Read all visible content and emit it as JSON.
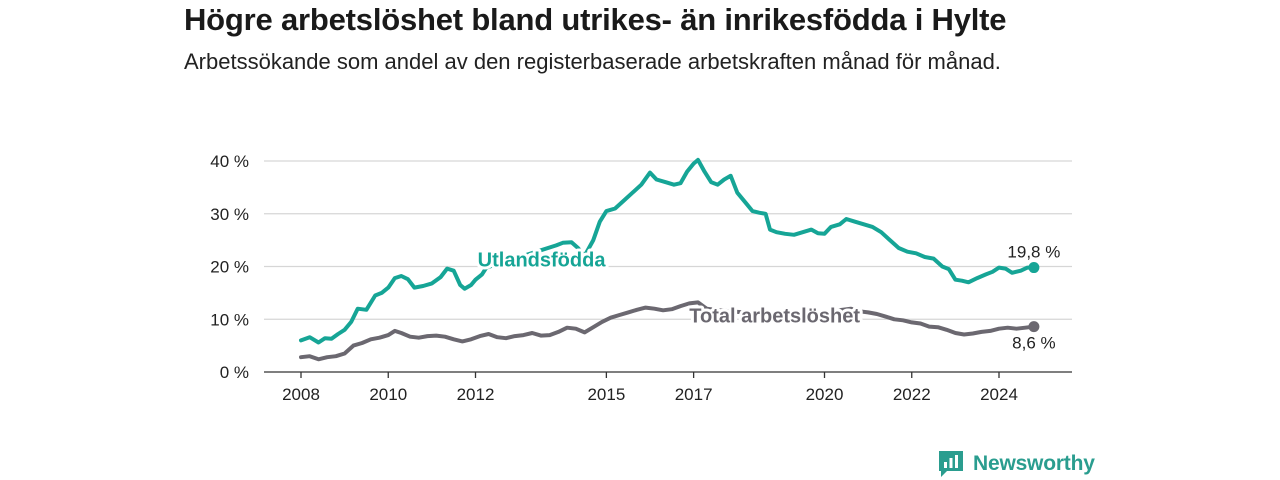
{
  "title": "Högre arbetslöshet bland utrikes- än inrikesfödda i Hylte",
  "subtitle": "Arbetssökande som andel av den registerbaserade arbetskraften månad för månad.",
  "logo": {
    "text": "Newsworthy",
    "icon": "newsworthy-chart-icon"
  },
  "colors": {
    "foreign": "#16a596",
    "total": "#6b6870",
    "grid": "#d6d6d6",
    "axis": "#333333",
    "text": "#222222"
  },
  "chart_data": {
    "type": "line",
    "title": "",
    "xlabel": "",
    "ylabel": "",
    "ylim": [
      0,
      40
    ],
    "xlim": [
      2008.0,
      2025.25
    ],
    "grid": "horizontal",
    "legend": "inline labels",
    "y_ticks": [
      {
        "value": 0,
        "label": "0 %"
      },
      {
        "value": 10,
        "label": "10 %"
      },
      {
        "value": 20,
        "label": "20 %"
      },
      {
        "value": 30,
        "label": "30 %"
      },
      {
        "value": 40,
        "label": "40 %"
      }
    ],
    "x_ticks": [
      {
        "value": 2008,
        "label": "2008"
      },
      {
        "value": 2010,
        "label": "2010"
      },
      {
        "value": 2012,
        "label": "2012"
      },
      {
        "value": 2015,
        "label": "2015"
      },
      {
        "value": 2017,
        "label": "2017"
      },
      {
        "value": 2020,
        "label": "2020"
      },
      {
        "value": 2022,
        "label": "2022"
      },
      {
        "value": 2024,
        "label": "2024"
      }
    ],
    "series": [
      {
        "name": "Utlandsfödda",
        "color": "#16a596",
        "end_label": "19,8 %",
        "points": [
          [
            2008.0,
            6.0
          ],
          [
            2008.2,
            6.6
          ],
          [
            2008.4,
            5.6
          ],
          [
            2008.55,
            6.4
          ],
          [
            2008.7,
            6.3
          ],
          [
            2008.85,
            7.2
          ],
          [
            2009.0,
            8.0
          ],
          [
            2009.15,
            9.5
          ],
          [
            2009.3,
            12.0
          ],
          [
            2009.5,
            11.8
          ],
          [
            2009.7,
            14.5
          ],
          [
            2009.85,
            15.0
          ],
          [
            2010.0,
            16.0
          ],
          [
            2010.15,
            17.8
          ],
          [
            2010.3,
            18.2
          ],
          [
            2010.45,
            17.6
          ],
          [
            2010.6,
            16.0
          ],
          [
            2010.8,
            16.3
          ],
          [
            2011.0,
            16.8
          ],
          [
            2011.2,
            18.0
          ],
          [
            2011.35,
            19.6
          ],
          [
            2011.5,
            19.2
          ],
          [
            2011.65,
            16.5
          ],
          [
            2011.75,
            15.8
          ],
          [
            2011.9,
            16.5
          ],
          [
            2012.0,
            17.5
          ],
          [
            2012.15,
            18.5
          ],
          [
            2012.25,
            19.8
          ],
          [
            2013.85,
            24.0
          ],
          [
            2014.0,
            24.5
          ],
          [
            2014.2,
            24.6
          ],
          [
            2014.35,
            23.5
          ],
          [
            2014.5,
            22.0
          ],
          [
            2014.7,
            25.0
          ],
          [
            2014.85,
            28.5
          ],
          [
            2015.0,
            30.5
          ],
          [
            2015.2,
            31.0
          ],
          [
            2015.4,
            32.5
          ],
          [
            2015.6,
            34.0
          ],
          [
            2015.8,
            35.5
          ],
          [
            2016.0,
            37.8
          ],
          [
            2016.15,
            36.5
          ],
          [
            2016.35,
            36.0
          ],
          [
            2016.55,
            35.5
          ],
          [
            2016.7,
            35.8
          ],
          [
            2016.85,
            38.0
          ],
          [
            2017.0,
            39.5
          ],
          [
            2017.1,
            40.2
          ],
          [
            2017.25,
            38.0
          ],
          [
            2017.4,
            36.0
          ],
          [
            2017.55,
            35.5
          ],
          [
            2017.7,
            36.5
          ],
          [
            2017.85,
            37.2
          ],
          [
            2018.0,
            34.0
          ],
          [
            2018.2,
            32.0
          ],
          [
            2018.35,
            30.5
          ],
          [
            2018.5,
            30.2
          ],
          [
            2018.65,
            30.0
          ],
          [
            2018.75,
            27.0
          ],
          [
            2018.9,
            26.5
          ],
          [
            2019.1,
            26.2
          ],
          [
            2019.3,
            26.0
          ],
          [
            2019.5,
            26.5
          ],
          [
            2019.7,
            27.0
          ],
          [
            2019.85,
            26.3
          ],
          [
            2020.0,
            26.2
          ],
          [
            2020.15,
            27.5
          ],
          [
            2020.35,
            28.0
          ],
          [
            2020.5,
            29.0
          ],
          [
            2020.7,
            28.5
          ],
          [
            2020.9,
            28.0
          ],
          [
            2021.1,
            27.5
          ],
          [
            2021.3,
            26.5
          ],
          [
            2021.5,
            25.0
          ],
          [
            2021.7,
            23.5
          ],
          [
            2021.9,
            22.8
          ],
          [
            2022.1,
            22.5
          ],
          [
            2022.3,
            21.8
          ],
          [
            2022.5,
            21.5
          ],
          [
            2022.7,
            20.0
          ],
          [
            2022.85,
            19.5
          ],
          [
            2023.0,
            17.5
          ],
          [
            2023.15,
            17.3
          ],
          [
            2023.3,
            17.0
          ],
          [
            2023.5,
            17.8
          ],
          [
            2023.7,
            18.5
          ],
          [
            2023.85,
            19.0
          ],
          [
            2024.0,
            19.8
          ],
          [
            2024.15,
            19.6
          ],
          [
            2024.3,
            18.8
          ],
          [
            2024.5,
            19.2
          ],
          [
            2024.65,
            19.8
          ],
          [
            2024.8,
            19.8
          ]
        ]
      },
      {
        "name": "Total arbetslöshet",
        "color": "#6b6870",
        "end_label": "8,6 %",
        "points": [
          [
            2008.0,
            2.8
          ],
          [
            2008.2,
            3.0
          ],
          [
            2008.4,
            2.4
          ],
          [
            2008.6,
            2.8
          ],
          [
            2008.8,
            3.0
          ],
          [
            2009.0,
            3.5
          ],
          [
            2009.2,
            5.0
          ],
          [
            2009.4,
            5.5
          ],
          [
            2009.6,
            6.2
          ],
          [
            2009.8,
            6.5
          ],
          [
            2010.0,
            7.0
          ],
          [
            2010.15,
            7.8
          ],
          [
            2010.3,
            7.4
          ],
          [
            2010.5,
            6.7
          ],
          [
            2010.7,
            6.5
          ],
          [
            2010.9,
            6.8
          ],
          [
            2011.1,
            6.9
          ],
          [
            2011.3,
            6.7
          ],
          [
            2011.5,
            6.2
          ],
          [
            2011.7,
            5.8
          ],
          [
            2011.9,
            6.2
          ],
          [
            2012.1,
            6.8
          ],
          [
            2012.3,
            7.2
          ],
          [
            2012.5,
            6.6
          ],
          [
            2012.7,
            6.4
          ],
          [
            2012.9,
            6.8
          ],
          [
            2013.1,
            7.0
          ],
          [
            2013.3,
            7.4
          ],
          [
            2013.5,
            6.9
          ],
          [
            2013.7,
            7.0
          ],
          [
            2013.9,
            7.6
          ],
          [
            2014.1,
            8.4
          ],
          [
            2014.3,
            8.2
          ],
          [
            2014.5,
            7.5
          ],
          [
            2014.7,
            8.5
          ],
          [
            2014.9,
            9.5
          ],
          [
            2015.1,
            10.3
          ],
          [
            2015.3,
            10.8
          ],
          [
            2015.5,
            11.3
          ],
          [
            2015.7,
            11.8
          ],
          [
            2015.9,
            12.2
          ],
          [
            2016.1,
            12.0
          ],
          [
            2016.3,
            11.7
          ],
          [
            2016.5,
            11.9
          ],
          [
            2016.7,
            12.5
          ],
          [
            2016.9,
            13.0
          ],
          [
            2017.1,
            13.2
          ],
          [
            2017.3,
            12.0
          ],
          [
            2017.5,
            11.8
          ],
          [
            2017.7,
            11.6
          ],
          [
            2018.0,
            11.4
          ],
          [
            2018.3,
            11.2
          ],
          [
            2018.6,
            11.0
          ],
          [
            2018.9,
            10.8
          ],
          [
            2019.2,
            11.0
          ],
          [
            2019.5,
            11.1
          ],
          [
            2019.8,
            11.0
          ],
          [
            2020.1,
            11.2
          ],
          [
            2020.4,
            11.8
          ],
          [
            2020.6,
            12.0
          ],
          [
            2020.8,
            11.5
          ],
          [
            2021.0,
            11.3
          ],
          [
            2021.2,
            11.0
          ],
          [
            2021.4,
            10.5
          ],
          [
            2021.6,
            10.0
          ],
          [
            2021.8,
            9.8
          ],
          [
            2022.0,
            9.4
          ],
          [
            2022.2,
            9.2
          ],
          [
            2022.4,
            8.6
          ],
          [
            2022.6,
            8.5
          ],
          [
            2022.8,
            8.0
          ],
          [
            2023.0,
            7.4
          ],
          [
            2023.2,
            7.1
          ],
          [
            2023.4,
            7.3
          ],
          [
            2023.6,
            7.6
          ],
          [
            2023.8,
            7.8
          ],
          [
            2024.0,
            8.2
          ],
          [
            2024.2,
            8.4
          ],
          [
            2024.4,
            8.2
          ],
          [
            2024.6,
            8.4
          ],
          [
            2024.8,
            8.6
          ]
        ]
      }
    ],
    "annotations": [
      {
        "series": 0,
        "text": "Utlandsfödda",
        "x": 2012.05,
        "y": 20.0
      },
      {
        "series": 1,
        "text": "Total arbetslöshet",
        "x": 2016.9,
        "y": 9.4
      }
    ]
  }
}
